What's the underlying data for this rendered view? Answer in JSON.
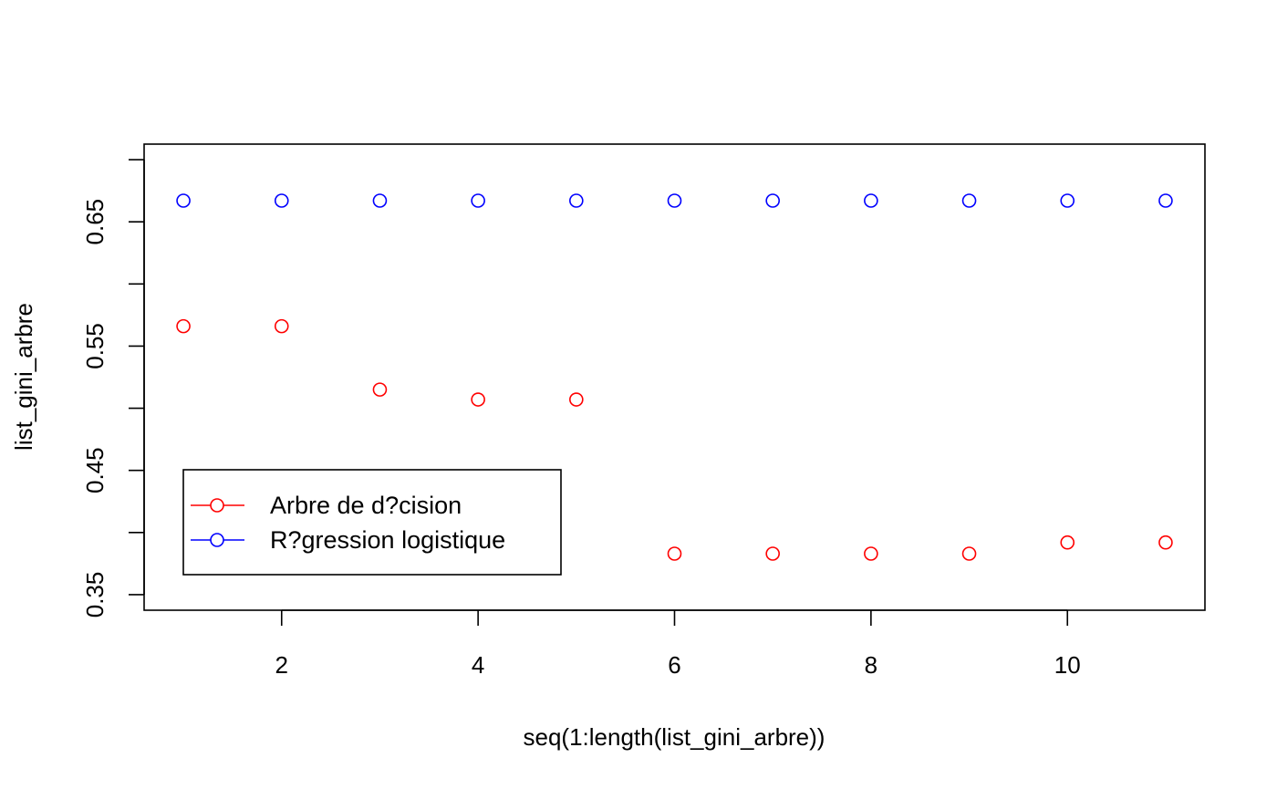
{
  "chart_data": {
    "type": "scatter",
    "title": "",
    "xlabel": "seq(1:length(list_gini_arbre))",
    "ylabel": "list_gini_arbre",
    "xlim": [
      0.6,
      11.4
    ],
    "ylim": [
      0.3375,
      0.7125
    ],
    "x_ticks": [
      2,
      4,
      6,
      8,
      10
    ],
    "y_ticks": [
      0.35,
      0.4,
      0.45,
      0.5,
      0.55,
      0.6,
      0.65,
      0.7
    ],
    "y_tick_labels": [
      {
        "value": 0.35,
        "label": "0.35"
      },
      {
        "value": 0.45,
        "label": "0.45"
      },
      {
        "value": 0.55,
        "label": "0.55"
      },
      {
        "value": 0.65,
        "label": "0.65"
      }
    ],
    "grid": false,
    "legend_position": "bottom-left",
    "series": [
      {
        "name": "Arbre de d?cision",
        "color": "#ff0000",
        "x": [
          1,
          2,
          3,
          4,
          5,
          6,
          7,
          8,
          9,
          10,
          11
        ],
        "values": [
          0.566,
          0.566,
          0.515,
          0.507,
          0.507,
          0.383,
          0.383,
          0.383,
          0.383,
          0.392,
          0.392
        ]
      },
      {
        "name": "R?gression logistique",
        "color": "#0000ff",
        "x": [
          1,
          2,
          3,
          4,
          5,
          6,
          7,
          8,
          9,
          10,
          11
        ],
        "values": [
          0.667,
          0.667,
          0.667,
          0.667,
          0.667,
          0.667,
          0.667,
          0.667,
          0.667,
          0.667,
          0.667
        ]
      }
    ]
  }
}
